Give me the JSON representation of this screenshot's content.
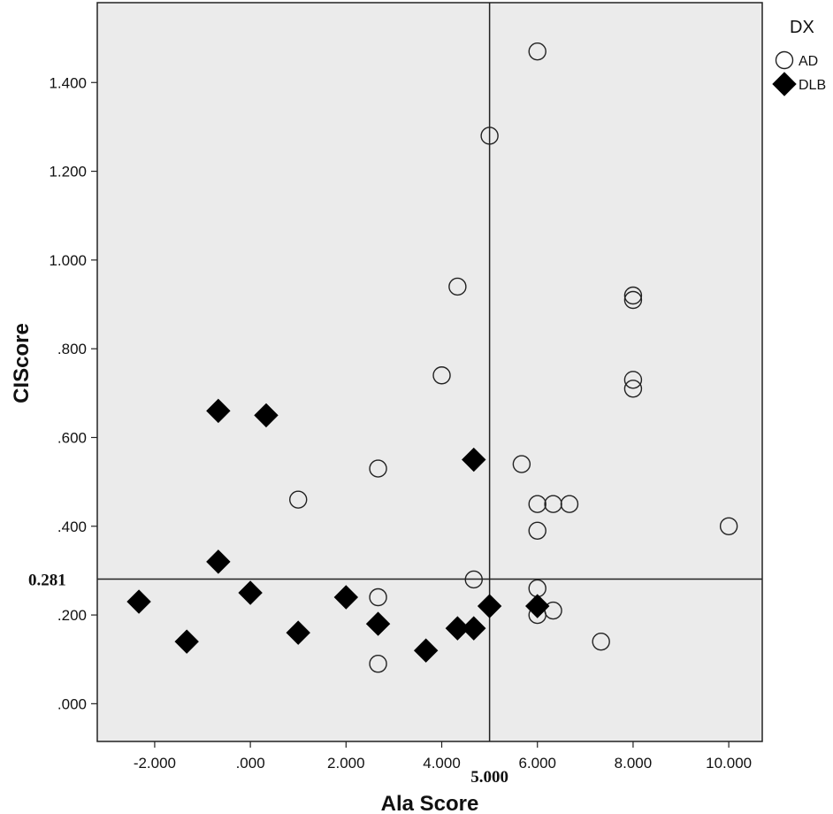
{
  "chart_data": {
    "type": "scatter",
    "xlabel": "Ala Score",
    "ylabel": "CIScore",
    "xlim": [
      -3.2,
      10.7
    ],
    "ylim": [
      -0.085,
      1.58
    ],
    "x_ticks": [
      -2,
      0,
      2,
      4,
      6,
      8,
      10
    ],
    "x_tick_labels": [
      "-2.000",
      ".000",
      "2.000",
      "4.000",
      "6.000",
      "8.000",
      "10.000"
    ],
    "y_ticks": [
      0,
      0.2,
      0.4,
      0.6,
      0.8,
      1.0,
      1.2,
      1.4
    ],
    "y_tick_labels": [
      ".000",
      ".200",
      ".400",
      ".600",
      ".800",
      "1.000",
      "1.200",
      "1.400"
    ],
    "grid": false,
    "background": "#ebebeb",
    "reference_lines": {
      "vertical": {
        "value": 5.0,
        "label": "5.000"
      },
      "horizontal": {
        "value": 0.281,
        "label": "0.281"
      }
    },
    "legend": {
      "title": "DX",
      "position": "top-right-outside",
      "entries": [
        {
          "name": "AD",
          "marker": "open-circle"
        },
        {
          "name": "DLB",
          "marker": "filled-diamond"
        }
      ]
    },
    "series": [
      {
        "name": "AD",
        "marker": "open-circle",
        "points": [
          [
            6.0,
            1.47
          ],
          [
            5.0,
            1.28
          ],
          [
            4.33,
            0.94
          ],
          [
            8.0,
            0.92
          ],
          [
            8.0,
            0.91
          ],
          [
            4.0,
            0.74
          ],
          [
            8.0,
            0.73
          ],
          [
            8.0,
            0.71
          ],
          [
            5.67,
            0.54
          ],
          [
            2.67,
            0.53
          ],
          [
            1.0,
            0.46
          ],
          [
            6.0,
            0.45
          ],
          [
            6.33,
            0.45
          ],
          [
            6.67,
            0.45
          ],
          [
            10.0,
            0.4
          ],
          [
            6.0,
            0.39
          ],
          [
            4.67,
            0.28
          ],
          [
            6.0,
            0.26
          ],
          [
            2.67,
            0.24
          ],
          [
            6.33,
            0.21
          ],
          [
            6.0,
            0.2
          ],
          [
            7.33,
            0.14
          ],
          [
            2.67,
            0.09
          ]
        ]
      },
      {
        "name": "DLB",
        "marker": "filled-diamond",
        "points": [
          [
            -0.67,
            0.66
          ],
          [
            0.33,
            0.65
          ],
          [
            4.67,
            0.55
          ],
          [
            -0.67,
            0.32
          ],
          [
            0.0,
            0.25
          ],
          [
            2.0,
            0.24
          ],
          [
            -2.33,
            0.23
          ],
          [
            5.0,
            0.22
          ],
          [
            6.0,
            0.22
          ],
          [
            2.67,
            0.18
          ],
          [
            4.33,
            0.17
          ],
          [
            4.67,
            0.17
          ],
          [
            1.0,
            0.16
          ],
          [
            -1.33,
            0.14
          ],
          [
            3.67,
            0.12
          ]
        ]
      }
    ]
  }
}
